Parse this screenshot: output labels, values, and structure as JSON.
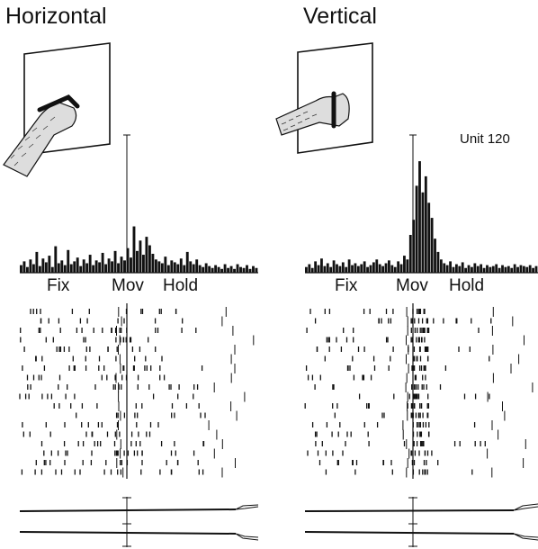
{
  "figure": {
    "unit_label": "Unit 120",
    "epochs": [
      "Fix",
      "Mov",
      "Hold"
    ],
    "colors": {
      "ink": "#111111",
      "background": "#ffffff"
    },
    "panels": [
      {
        "id": "horizontal",
        "title": "Horizontal",
        "illustration": "monkey-hand-pushing-horizontal-panel-icon",
        "histogram": [
          8,
          12,
          6,
          14,
          9,
          22,
          7,
          15,
          11,
          18,
          6,
          28,
          10,
          13,
          8,
          24,
          9,
          12,
          16,
          7,
          14,
          10,
          19,
          8,
          13,
          11,
          21,
          9,
          15,
          12,
          23,
          10,
          17,
          13,
          26,
          16,
          49,
          23,
          34,
          19,
          38,
          29,
          20,
          14,
          12,
          10,
          17,
          8,
          13,
          11,
          9,
          15,
          8,
          22,
          12,
          9,
          14,
          8,
          6,
          10,
          7,
          5,
          8,
          6,
          4,
          9,
          5,
          7,
          4,
          9,
          6,
          5,
          8,
          4,
          7,
          5
        ],
        "histogram_marker_index": 36,
        "raster_rows": 18
      },
      {
        "id": "vertical",
        "title": "Vertical",
        "illustration": "monkey-hand-gripping-vertical-panel-icon",
        "histogram": [
          6,
          9,
          5,
          12,
          8,
          15,
          7,
          10,
          6,
          13,
          9,
          7,
          11,
          6,
          14,
          8,
          10,
          7,
          9,
          12,
          6,
          8,
          11,
          14,
          9,
          7,
          10,
          13,
          8,
          6,
          12,
          9,
          18,
          14,
          40,
          56,
          92,
          118,
          85,
          102,
          74,
          58,
          36,
          22,
          14,
          10,
          8,
          12,
          6,
          9,
          7,
          11,
          5,
          8,
          6,
          10,
          7,
          9,
          5,
          8,
          6,
          7,
          9,
          5,
          8,
          6,
          7,
          5,
          9,
          6,
          8,
          7,
          6,
          8,
          5,
          7
        ],
        "histogram_marker_index": 34,
        "raster_rows": 18
      }
    ]
  }
}
